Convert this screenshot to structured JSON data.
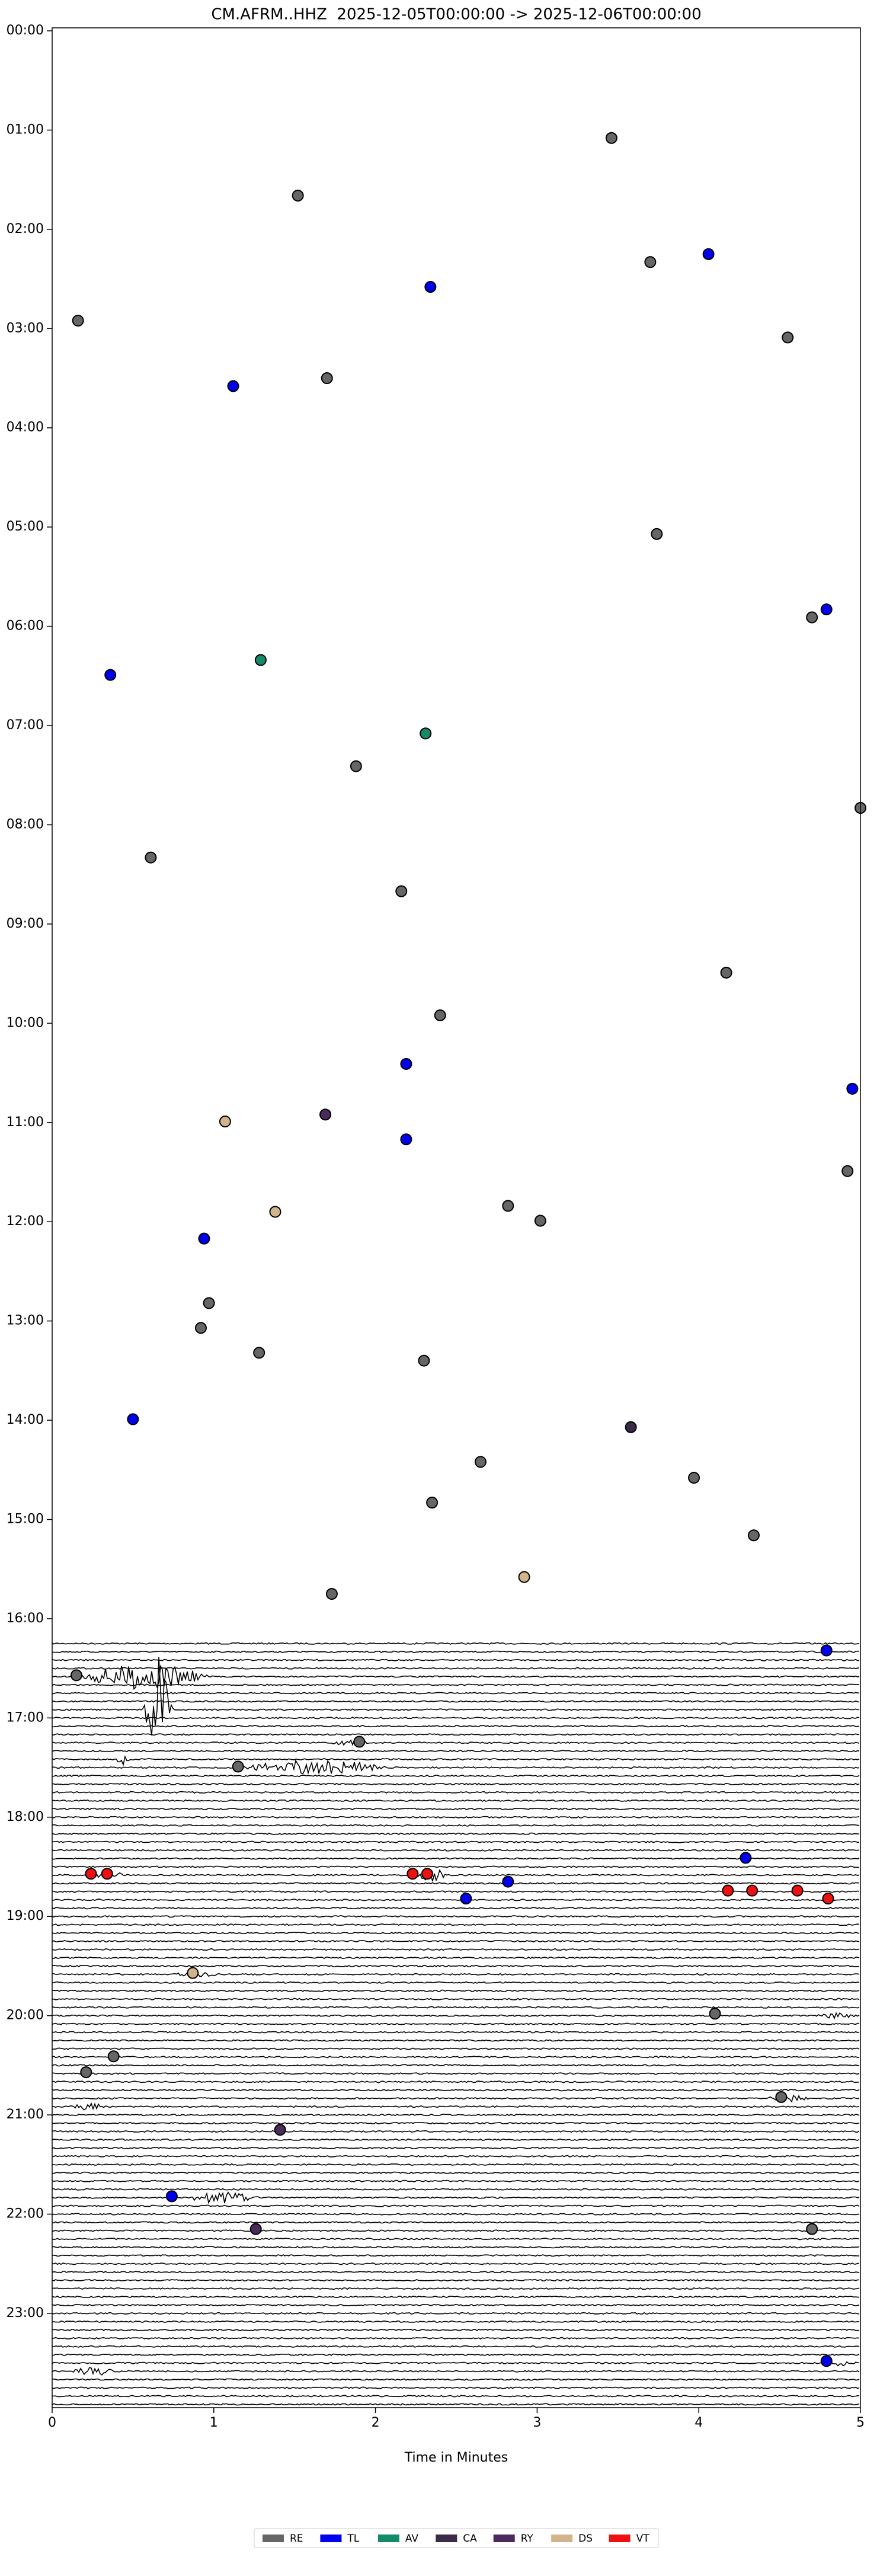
{
  "chart_data": {
    "type": "scatter",
    "title": "CM.AFRM..HHZ  2025-12-05T00:00:00 -> 2025-12-06T00:00:00",
    "x_label": "Time in Minutes",
    "xlim": [
      0,
      5
    ],
    "xticks": [
      0,
      1,
      2,
      3,
      4,
      5
    ],
    "ylim": [
      -0.03,
      23.95
    ],
    "y_inverted": true,
    "yticks": [
      {
        "value": 0,
        "label": "00:00"
      },
      {
        "value": 1,
        "label": "01:00"
      },
      {
        "value": 2,
        "label": "02:00"
      },
      {
        "value": 3,
        "label": "03:00"
      },
      {
        "value": 4,
        "label": "04:00"
      },
      {
        "value": 5,
        "label": "05:00"
      },
      {
        "value": 6,
        "label": "06:00"
      },
      {
        "value": 7,
        "label": "07:00"
      },
      {
        "value": 8,
        "label": "08:00"
      },
      {
        "value": 9,
        "label": "09:00"
      },
      {
        "value": 10,
        "label": "10:00"
      },
      {
        "value": 11,
        "label": "11:00"
      },
      {
        "value": 12,
        "label": "12:00"
      },
      {
        "value": 13,
        "label": "13:00"
      },
      {
        "value": 14,
        "label": "14:00"
      },
      {
        "value": 15,
        "label": "15:00"
      },
      {
        "value": 16,
        "label": "16:00"
      },
      {
        "value": 17,
        "label": "17:00"
      },
      {
        "value": 18,
        "label": "18:00"
      },
      {
        "value": 19,
        "label": "19:00"
      },
      {
        "value": 20,
        "label": "20:00"
      },
      {
        "value": 21,
        "label": "21:00"
      },
      {
        "value": 22,
        "label": "22:00"
      },
      {
        "value": 23,
        "label": "23:00"
      }
    ],
    "legend": "bottom",
    "series": [
      {
        "name": "RE",
        "color": "#666666",
        "x": [
          3.46,
          1.52,
          3.7,
          0.16,
          4.55,
          1.7,
          3.74,
          4.7,
          1.88,
          5.0,
          0.61,
          2.16,
          4.17,
          2.4,
          4.92,
          2.82,
          3.02,
          0.97,
          0.92,
          1.28,
          2.3,
          2.65,
          3.97,
          2.35,
          4.34,
          1.73,
          0.15,
          1.9,
          1.15,
          4.1,
          0.38,
          0.21,
          4.51,
          4.7
        ],
        "values": [
          1.08,
          1.66,
          2.33,
          2.92,
          3.09,
          3.5,
          5.07,
          5.91,
          7.41,
          7.83,
          8.33,
          8.67,
          9.49,
          9.92,
          11.49,
          11.84,
          11.99,
          12.82,
          13.07,
          13.32,
          13.4,
          14.42,
          14.58,
          14.83,
          15.16,
          15.75,
          16.57,
          17.24,
          17.49,
          19.98,
          20.41,
          20.57,
          20.82,
          22.15
        ]
      },
      {
        "name": "TL",
        "color": "#0000ee",
        "x": [
          4.06,
          2.34,
          1.12,
          4.79,
          0.36,
          2.19,
          4.95,
          2.19,
          0.94,
          0.5,
          4.79,
          4.29,
          2.82,
          2.56,
          0.74,
          4.79
        ],
        "values": [
          2.25,
          2.58,
          3.58,
          5.83,
          6.49,
          10.41,
          10.66,
          11.17,
          12.17,
          13.99,
          16.32,
          18.41,
          18.65,
          18.82,
          21.82,
          23.48
        ]
      },
      {
        "name": "AV",
        "color": "#138a68",
        "x": [
          1.29,
          2.31
        ],
        "values": [
          6.34,
          7.08
        ]
      },
      {
        "name": "CA",
        "color": "#3b2a48",
        "x": [
          3.58
        ],
        "values": [
          14.07
        ]
      },
      {
        "name": "RY",
        "color": "#4b2a5c",
        "x": [
          1.69,
          1.41,
          1.26
        ],
        "values": [
          10.92,
          21.15,
          22.15
        ]
      },
      {
        "name": "DS",
        "color": "#d2b48c",
        "x": [
          1.07,
          1.38,
          2.92,
          0.87
        ],
        "values": [
          10.99,
          11.9,
          15.58,
          19.57
        ]
      },
      {
        "name": "VT",
        "color": "#ee1111",
        "x": [
          0.24,
          0.34,
          2.23,
          2.32,
          4.18,
          4.33,
          4.61,
          4.8
        ],
        "values": [
          18.57,
          18.57,
          18.57,
          18.57,
          18.74,
          18.74,
          18.74,
          18.82
        ]
      }
    ]
  }
}
